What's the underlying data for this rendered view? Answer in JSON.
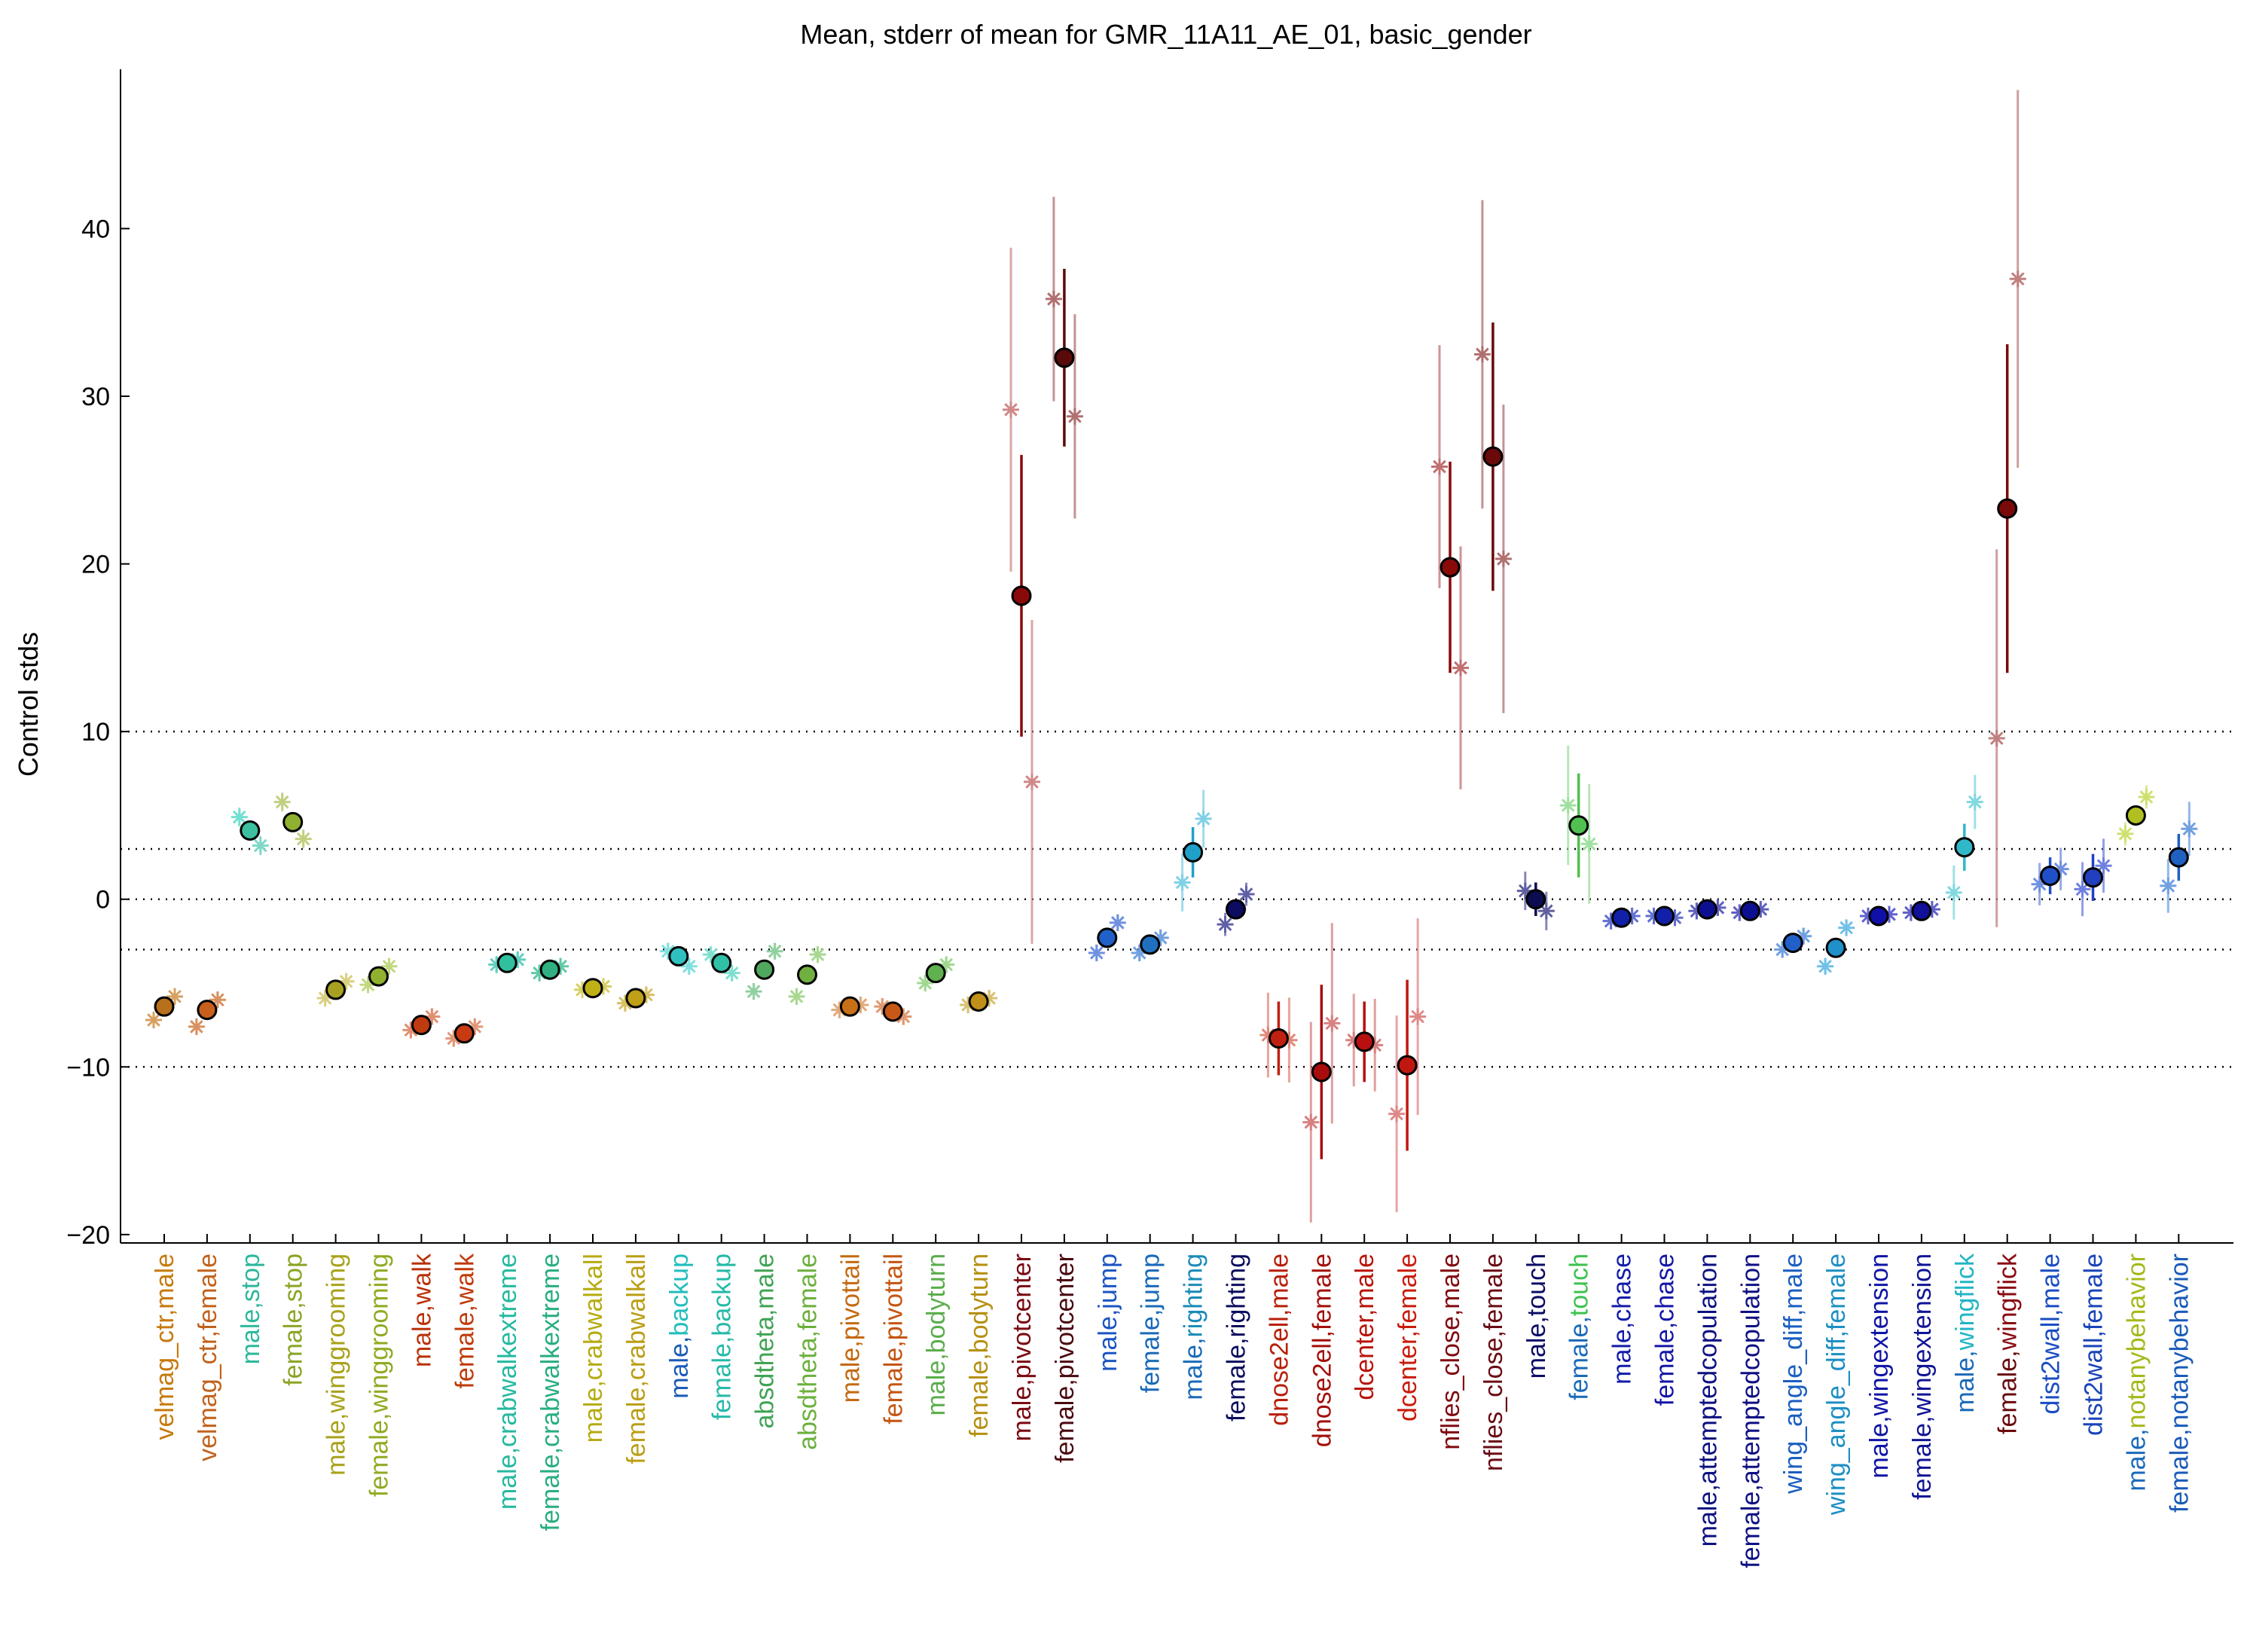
{
  "chart_data": {
    "type": "scatter",
    "title": "Mean, stderr of mean for GMR_11A11_AE_01, basic_gender",
    "ylabel": "Control stds",
    "xlabel": "",
    "ylim": [
      -20.5,
      49.5
    ],
    "yticks": [
      -20,
      -10,
      0,
      10,
      20,
      30,
      40
    ],
    "ytick_labels": [
      "−20",
      "−10",
      "0",
      "10",
      "20",
      "30",
      "40"
    ],
    "reference_lines": [
      -10,
      -3,
      0,
      3,
      10
    ],
    "grid": false,
    "legend": "none",
    "categories": [
      "velmag_ctr,male",
      "velmag_ctr,female",
      "male,stop",
      "female,stop",
      "male,winggrooming",
      "female,winggrooming",
      "male,walk",
      "female,walk",
      "male,crabwalkextreme",
      "female,crabwalkextreme",
      "male,crabwalkall",
      "female,crabwalkall",
      "male,backup",
      "female,backup",
      "absdtheta,male",
      "absdtheta,female",
      "male,pivottail",
      "female,pivottail",
      "male,bodyturn",
      "female,bodyturn",
      "male,pivotcenter",
      "female,pivotcenter",
      "male,jump",
      "female,jump",
      "male,righting",
      "female,righting",
      "dnose2ell,male",
      "dnose2ell,female",
      "dcenter,male",
      "dcenter,female",
      "nflies_close,male",
      "nflies_close,female",
      "male,touch",
      "female,touch",
      "male,chase",
      "female,chase",
      "male,attemptedcopulation",
      "female,attemptedcopulation",
      "wing_angle_diff,male",
      "wing_angle_diff,female",
      "male,wingextension",
      "female,wingextension",
      "male,wingflick",
      "female,wingflick",
      "dist2wall,male",
      "dist2wall,female",
      "male,notanybehavior",
      "female,notanybehavior"
    ],
    "label_colors": [
      "#c67a0e",
      "#c2621c",
      "#2db89a",
      "#8aa526",
      "#a8a21b",
      "#8fab22",
      "#b8320a",
      "#c03a0a",
      "#25b99e",
      "#29ad82",
      "#b5ab12",
      "#ba9e15",
      "#23bdbd",
      "#25b9a8",
      "#3fa355",
      "#6bb03d",
      "#c46a10",
      "#c45512",
      "#5bad4c",
      "#b59012",
      "#7a0a12",
      "#4a0a10",
      "#1b55c2",
      "#1a6ab8",
      "#1a8bb8",
      "#0c0c5e",
      "#b81f0a",
      "#a30f0a",
      "#b8140a",
      "#c81c0c",
      "#800a10",
      "#6a0c14",
      "#0c0c66",
      "#3ec24f",
      "#121ca8",
      "#1416a6",
      "#0c1080",
      "#0e0f82",
      "#1a5fc0",
      "#1d8fc3",
      "#0f14a6",
      "#101495",
      "#22b5c4",
      "#6a0a0e",
      "#1a4dc0",
      "#1a45b8",
      "#a5b81a",
      "#1a5bb8"
    ],
    "split_labels": [
      null,
      null,
      null,
      null,
      null,
      null,
      null,
      null,
      null,
      null,
      null,
      null,
      [
        "male,",
        "#1a5bb8",
        "backup",
        "#23bdbd"
      ],
      null,
      null,
      null,
      null,
      null,
      null,
      null,
      null,
      null,
      null,
      null,
      [
        "male,",
        "#1a6ab8",
        "righting",
        "#1a8bb8"
      ],
      null,
      null,
      null,
      null,
      null,
      null,
      null,
      null,
      [
        "female,",
        "#1a6ab8",
        "touch",
        "#3ec24f"
      ],
      null,
      null,
      null,
      null,
      null,
      null,
      null,
      null,
      [
        "male,",
        "#1a6ab8",
        "wingflick",
        "#22b5c4"
      ],
      [
        "female,",
        "#6a0a0e",
        "wingflick",
        "#8a0a12"
      ],
      null,
      null,
      [
        "male,",
        "#1a6ab8",
        "notanybehavior",
        "#a5b81a"
      ],
      null
    ],
    "means": [
      -6.4,
      -6.6,
      4.1,
      4.6,
      -5.4,
      -4.6,
      -7.5,
      -8.0,
      -3.8,
      -4.2,
      -5.3,
      -5.9,
      -3.4,
      -3.8,
      -4.2,
      -4.5,
      -6.4,
      -6.7,
      -4.4,
      -6.1,
      18.1,
      32.3,
      -2.3,
      -2.7,
      2.8,
      -0.6,
      -8.3,
      -10.3,
      -8.5,
      -9.9,
      19.8,
      26.4,
      0.0,
      4.4,
      -1.1,
      -1.0,
      -0.6,
      -0.7,
      -2.6,
      -2.9,
      -1.0,
      -0.7,
      3.1,
      23.3,
      1.4,
      1.3,
      5.0,
      2.5
    ],
    "errors": [
      0.4,
      0.4,
      0.5,
      0.5,
      0.4,
      0.4,
      0.4,
      0.4,
      0.3,
      0.3,
      0.3,
      0.3,
      0.4,
      0.4,
      0.4,
      0.4,
      0.3,
      0.3,
      0.4,
      0.3,
      8.4,
      5.3,
      0.4,
      0.4,
      1.5,
      0.6,
      2.2,
      5.2,
      2.4,
      5.1,
      6.3,
      8.0,
      1.0,
      3.1,
      0.2,
      0.2,
      0.2,
      0.2,
      0.4,
      0.4,
      0.2,
      0.2,
      1.4,
      9.8,
      1.1,
      1.4,
      0.6,
      1.4
    ],
    "marker_colors": [
      "#b8701c",
      "#c8601c",
      "#3cc0a0",
      "#90b030",
      "#a8a020",
      "#90b030",
      "#c03a10",
      "#c83a10",
      "#30c0a0",
      "#30b080",
      "#c0b018",
      "#c0a018",
      "#30c0c0",
      "#30c0a8",
      "#50a860",
      "#70b040",
      "#c87018",
      "#c85818",
      "#60b050",
      "#c09018",
      "#8a0a0a",
      "#5a0a0a",
      "#2060c8",
      "#2070c0",
      "#20a0c8",
      "#0c0c60",
      "#c02010",
      "#a80c0c",
      "#b81010",
      "#c01810",
      "#8a0a0a",
      "#6a0a0a",
      "#0c0c50",
      "#50c050",
      "#1020a8",
      "#1020a8",
      "#0c1090",
      "#0c1090",
      "#2060c8",
      "#2090c8",
      "#1010a8",
      "#101098",
      "#30b8c8",
      "#7a0a0a",
      "#2050c8",
      "#2040c0",
      "#b0c020",
      "#2060c0"
    ],
    "star_pairs": [
      [
        -7.2,
        -5.8
      ],
      [
        -7.6,
        -6.0
      ],
      [
        4.9,
        3.2
      ],
      [
        5.8,
        3.6
      ],
      [
        -5.9,
        -4.9
      ],
      [
        -5.1,
        -4.0
      ],
      [
        -7.8,
        -7.0
      ],
      [
        -8.3,
        -7.6
      ],
      [
        -3.9,
        -3.6
      ],
      [
        -4.4,
        -4.0
      ],
      [
        -5.4,
        -5.2
      ],
      [
        -6.2,
        -5.7
      ],
      [
        -3.1,
        -4.0
      ],
      [
        -3.3,
        -4.4
      ],
      [
        -5.5,
        -3.1
      ],
      [
        -5.8,
        -3.3
      ],
      [
        -6.6,
        -6.3
      ],
      [
        -6.4,
        -7.0
      ],
      [
        -5.0,
        -3.9
      ],
      [
        -6.3,
        -5.9
      ],
      [
        29.2,
        7.0
      ],
      [
        35.8,
        28.8
      ],
      [
        -3.2,
        -1.4
      ],
      [
        -3.2,
        -2.3
      ],
      [
        1.0,
        4.8
      ],
      [
        -1.5,
        0.3
      ],
      [
        -8.1,
        -8.4
      ],
      [
        -13.3,
        -7.4
      ],
      [
        -8.4,
        -8.7
      ],
      [
        -12.8,
        -7.0
      ],
      [
        25.8,
        13.8
      ],
      [
        32.5,
        20.3
      ],
      [
        0.5,
        -0.7
      ],
      [
        5.6,
        3.3
      ],
      [
        -1.3,
        -1.0
      ],
      [
        -1.0,
        -1.1
      ],
      [
        -0.7,
        -0.5
      ],
      [
        -0.8,
        -0.6
      ],
      [
        -3.0,
        -2.2
      ],
      [
        -4.0,
        -1.7
      ],
      [
        -1.0,
        -0.9
      ],
      [
        -0.8,
        -0.6
      ],
      [
        0.4,
        5.8
      ],
      [
        9.6,
        37.0
      ],
      [
        0.9,
        1.8
      ],
      [
        0.6,
        2.0
      ],
      [
        3.9,
        6.1
      ],
      [
        0.8,
        4.2
      ]
    ],
    "star_colors": [
      [
        "#d8a060",
        "#d8a060"
      ],
      [
        "#d89060",
        "#d89060"
      ],
      [
        "#70e0d0",
        "#80d8c8"
      ],
      [
        "#c0d080",
        "#c0d080"
      ],
      [
        "#d8d080",
        "#d8d080"
      ],
      [
        "#c0d880",
        "#c0d880"
      ],
      [
        "#e09070",
        "#e09070"
      ],
      [
        "#e09878",
        "#e09878"
      ],
      [
        "#60d0c0",
        "#60d0c0"
      ],
      [
        "#60c8a8",
        "#60c8a8"
      ],
      [
        "#d8d060",
        "#d8d060"
      ],
      [
        "#d8c060",
        "#d8c060"
      ],
      [
        "#80e0e0",
        "#80e0e0"
      ],
      [
        "#80e0d0",
        "#80e0d0"
      ],
      [
        "#90d0a0",
        "#90d0a0"
      ],
      [
        "#a8d890",
        "#a8d890"
      ],
      [
        "#e0a878",
        "#e0a878"
      ],
      [
        "#e09870",
        "#e09870"
      ],
      [
        "#a0d890",
        "#a0d890"
      ],
      [
        "#d8c070",
        "#d8c070"
      ],
      [
        "#d08888",
        "#d08888"
      ],
      [
        "#b07070",
        "#b07070"
      ],
      [
        "#7090e0",
        "#7090e0"
      ],
      [
        "#70a0e0",
        "#70a0e0"
      ],
      [
        "#80d0e8",
        "#80d0e8"
      ],
      [
        "#6060a8",
        "#6060a8"
      ],
      [
        "#e08878",
        "#e08878"
      ],
      [
        "#d88080",
        "#d88080"
      ],
      [
        "#d88080",
        "#d88080"
      ],
      [
        "#e08888",
        "#e08888"
      ],
      [
        "#c07070",
        "#c07070"
      ],
      [
        "#b07070",
        "#b07070"
      ],
      [
        "#6060a0",
        "#6060a0"
      ],
      [
        "#a0e0a0",
        "#a0e0a0"
      ],
      [
        "#6070d0",
        "#6070d0"
      ],
      [
        "#6070d0",
        "#6070d0"
      ],
      [
        "#6060c0",
        "#6060c0"
      ],
      [
        "#6060c0",
        "#6060c0"
      ],
      [
        "#70a0e0",
        "#70a0e0"
      ],
      [
        "#70c0e8",
        "#70c0e8"
      ],
      [
        "#6060d0",
        "#6060d0"
      ],
      [
        "#6060c8",
        "#6060c8"
      ],
      [
        "#80d8e0",
        "#80d8e0"
      ],
      [
        "#c08080",
        "#c08080"
      ],
      [
        "#7090e0",
        "#7090e0"
      ],
      [
        "#7080e0",
        "#7080e0"
      ],
      [
        "#d0e070",
        "#d0e070"
      ],
      [
        "#70a0e0",
        "#70a0e0"
      ]
    ]
  }
}
